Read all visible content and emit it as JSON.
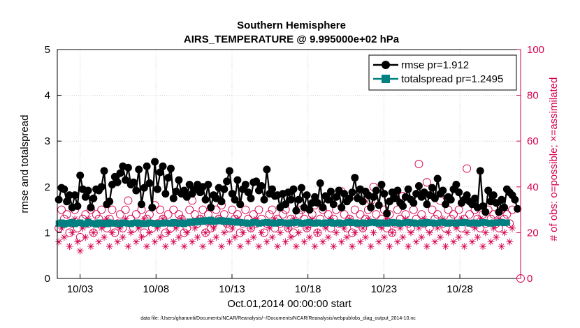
{
  "chart_data": {
    "type": "line",
    "title_line1": "Southern Hemisphere",
    "title_line2": "AIRS_TEMPERATURE @ 9.995000e+02 hPa",
    "xlabel": "Oct.01,2014 00:00:00 start",
    "ylabel": "rmse and totalspread",
    "ylabel_right": "# of obs: o=possible; ×=assimilated",
    "footnote": "data file: /Users/gharamti/Documents/NCAR/Reanalysis/~/Documents/NCAR/Reanalysis/webpub/obs_diag_output_2014-10.nc",
    "x_tick_labels": [
      "10/03",
      "10/08",
      "10/13",
      "10/18",
      "10/23",
      "10/28"
    ],
    "x_tick_values": [
      3,
      8,
      13,
      18,
      23,
      28
    ],
    "xlim": [
      1.5,
      32.0
    ],
    "ylim": [
      0,
      5
    ],
    "y_ticks": [
      "0",
      "1",
      "2",
      "3",
      "4",
      "5"
    ],
    "ylim_right": [
      0,
      100
    ],
    "y_ticks_right": [
      "0",
      "20",
      "40",
      "60",
      "80",
      "100"
    ],
    "grid": true,
    "legend_position": "top-right",
    "colors": {
      "rmse": "#000000",
      "totalspread": "#008080",
      "obs": "#d6004f"
    },
    "series": [
      {
        "name": "rmse pr=1.912",
        "values": [
          1.72,
          1.98,
          1.95,
          1.68,
          1.82,
          1.55,
          1.82,
          1.58,
          2.25,
          1.95,
          1.78,
          1.92,
          1.55,
          1.75,
          1.95,
          1.92,
          2.0,
          2.35,
          1.62,
          1.68,
          2.05,
          2.22,
          2.1,
          2.3,
          2.45,
          2.15,
          2.42,
          2.05,
          2.1,
          1.92,
          2.38,
          1.62,
          1.98,
          2.45,
          2.08,
          1.55,
          2.55,
          1.95,
          2.32,
          2.45,
          1.85,
          2.2,
          2.4,
          1.75,
          1.9,
          2.15,
          1.85,
          1.92,
          1.78,
          2.05,
          1.85,
          1.95,
          2.05,
          1.88,
          2.0,
          1.72,
          2.05,
          1.55,
          1.82,
          1.75,
          1.98,
          1.68,
          1.95,
          2.12,
          2.35,
          1.85,
          1.72,
          2.15,
          1.62,
          1.95,
          2.05,
          1.88,
          1.75,
          2.1,
          2.12,
          1.92,
          2.02,
          1.72,
          2.38,
          1.85,
          1.95,
          1.8,
          1.82,
          1.55,
          1.85,
          1.62,
          1.88,
          1.72,
          1.95,
          1.48,
          1.72,
          1.98,
          1.55,
          1.82,
          1.5,
          1.65,
          1.78,
          1.65,
          2.08,
          1.55,
          1.8,
          1.72,
          1.9,
          1.62,
          1.78,
          1.92,
          1.55,
          1.85,
          1.68,
          1.75,
          1.88,
          2.2,
          1.75,
          1.95,
          1.68,
          1.9,
          1.82,
          1.55,
          1.78,
          1.92,
          1.6,
          2.05,
          1.85,
          1.42,
          1.68,
          1.88,
          1.75,
          1.92,
          1.65,
          1.58,
          1.78,
          1.95,
          1.72,
          1.65,
          1.85,
          2.02,
          1.78,
          1.88,
          1.62,
          1.82,
          1.98,
          1.75,
          2.18,
          1.85,
          1.92,
          1.62,
          1.78,
          1.72,
          1.95,
          2.05,
          1.88,
          1.65,
          1.72,
          1.82,
          1.68,
          1.62,
          1.75,
          1.55,
          2.35,
          1.58,
          1.45,
          1.92,
          1.68,
          1.82,
          1.65,
          1.45,
          1.72,
          1.55,
          1.95,
          1.88,
          1.82,
          1.72,
          1.52
        ]
      },
      {
        "name": "totalspread pr=1.2495",
        "values": [
          1.2,
          1.22,
          1.18,
          1.21,
          1.2,
          1.23,
          1.19,
          1.21,
          1.22,
          1.2,
          1.19,
          1.23,
          1.21,
          1.2,
          1.18,
          1.22,
          1.2,
          1.21,
          1.19,
          1.22,
          1.2,
          1.21,
          1.2,
          1.19,
          1.22,
          1.21,
          1.2,
          1.19,
          1.21,
          1.22,
          1.2,
          1.21,
          1.19,
          1.2,
          1.22,
          1.21,
          1.2,
          1.19,
          1.21,
          1.2,
          1.22,
          1.21,
          1.2,
          1.23,
          1.21,
          1.2,
          1.22,
          1.19,
          1.21,
          1.24,
          1.22,
          1.25,
          1.23,
          1.26,
          1.24,
          1.27,
          1.25,
          1.28,
          1.24,
          1.26,
          1.25,
          1.27,
          1.24,
          1.26,
          1.25,
          1.23,
          1.24,
          1.22,
          1.23,
          1.21,
          1.22,
          1.2,
          1.21,
          1.23,
          1.22,
          1.2,
          1.21,
          1.22,
          1.23,
          1.21,
          1.22,
          1.2,
          1.21,
          1.23,
          1.22,
          1.21,
          1.2,
          1.22,
          1.21,
          1.23,
          1.22,
          1.2,
          1.21,
          1.22,
          1.23,
          1.21,
          1.2,
          1.22,
          1.21,
          1.2,
          1.22,
          1.21,
          1.23,
          1.2,
          1.21,
          1.22,
          1.2,
          1.21,
          1.22,
          1.23,
          1.21,
          1.22,
          1.2,
          1.21,
          1.22,
          1.2,
          1.21,
          1.22,
          1.23,
          1.21,
          1.2,
          1.22,
          1.21,
          1.2,
          1.22,
          1.23,
          1.21,
          1.22,
          1.2,
          1.21,
          1.22,
          1.23,
          1.21,
          1.22,
          1.2,
          1.21,
          1.22,
          1.2,
          1.23,
          1.21,
          1.22,
          1.2,
          1.21,
          1.22,
          1.23,
          1.21,
          1.2,
          1.22,
          1.21,
          1.2,
          1.22,
          1.21,
          1.23,
          1.22,
          1.2,
          1.21,
          1.22,
          1.2,
          1.21,
          1.23,
          1.22,
          1.21,
          1.2,
          1.22,
          1.21,
          1.22,
          1.23,
          1.21,
          1.22
        ]
      }
    ],
    "obs_possible": [
      22,
      30,
      26,
      28,
      20,
      24,
      30,
      22,
      18,
      26,
      28,
      24,
      30,
      20,
      28,
      26,
      30,
      24,
      22,
      26,
      30,
      20,
      24,
      28,
      22,
      30,
      34,
      26,
      22,
      28,
      24,
      30,
      20,
      26,
      28,
      22,
      32,
      24,
      30,
      26,
      20,
      28,
      22,
      30,
      24,
      28,
      26,
      20,
      22,
      30,
      34,
      28,
      24,
      26,
      30,
      20,
      28,
      22,
      24,
      30,
      26,
      32,
      28,
      24,
      22,
      30,
      26,
      28,
      20,
      24,
      30,
      26,
      22,
      28,
      24,
      30,
      26,
      20,
      24,
      28,
      30,
      22,
      26,
      24,
      28,
      30,
      22,
      26,
      20,
      24,
      28,
      30,
      26,
      22,
      24,
      28,
      32,
      20,
      26,
      30,
      24,
      28,
      22,
      26,
      30,
      24,
      38,
      28,
      22,
      26,
      20,
      30,
      24,
      28,
      22,
      26,
      30,
      34,
      40,
      28,
      24,
      26,
      30,
      22,
      28,
      20,
      24,
      30,
      26,
      36,
      28,
      24,
      22,
      30,
      26,
      50,
      28,
      24,
      42,
      22,
      30,
      26,
      28,
      34,
      24,
      22,
      30,
      26,
      28,
      24,
      30,
      22,
      26,
      48,
      28,
      24,
      30,
      26,
      22,
      28,
      24,
      30,
      26,
      28,
      24,
      22,
      30,
      26,
      28,
      24,
      30
    ],
    "obs_assimilated": [
      16,
      22,
      18,
      24,
      14,
      20,
      26,
      16,
      12,
      22,
      18,
      26,
      14,
      20,
      24,
      16,
      22,
      18,
      26,
      14,
      20,
      24,
      16,
      22,
      18,
      26,
      14,
      20,
      24,
      16,
      22,
      18,
      26,
      14,
      20,
      24,
      16,
      22,
      18,
      26,
      14,
      20,
      24,
      16,
      22,
      18,
      26,
      14,
      20,
      24,
      16,
      22,
      18,
      26,
      14,
      20,
      24,
      16,
      22,
      18,
      26,
      14,
      20,
      24,
      16,
      22,
      18,
      26,
      14,
      20,
      24,
      16,
      22,
      18,
      26,
      14,
      20,
      24,
      16,
      22,
      18,
      26,
      14,
      20,
      24,
      16,
      22,
      18,
      26,
      14,
      20,
      24,
      16,
      22,
      18,
      26,
      14,
      20,
      24,
      16,
      22,
      18,
      26,
      14,
      20,
      24,
      16,
      22,
      18,
      26,
      14,
      20,
      24,
      16,
      22,
      18,
      26,
      14,
      20,
      24,
      16,
      22,
      18,
      26,
      14,
      20,
      24,
      16,
      22,
      18,
      26,
      14,
      20,
      24,
      16,
      22,
      18,
      26,
      14,
      20,
      24,
      16,
      22,
      18,
      26,
      14,
      20,
      24,
      16,
      22,
      18,
      26,
      14,
      20,
      24,
      16,
      22,
      18,
      26,
      14,
      20,
      24,
      16,
      22,
      18,
      26,
      14,
      20,
      24,
      16,
      22
    ]
  }
}
